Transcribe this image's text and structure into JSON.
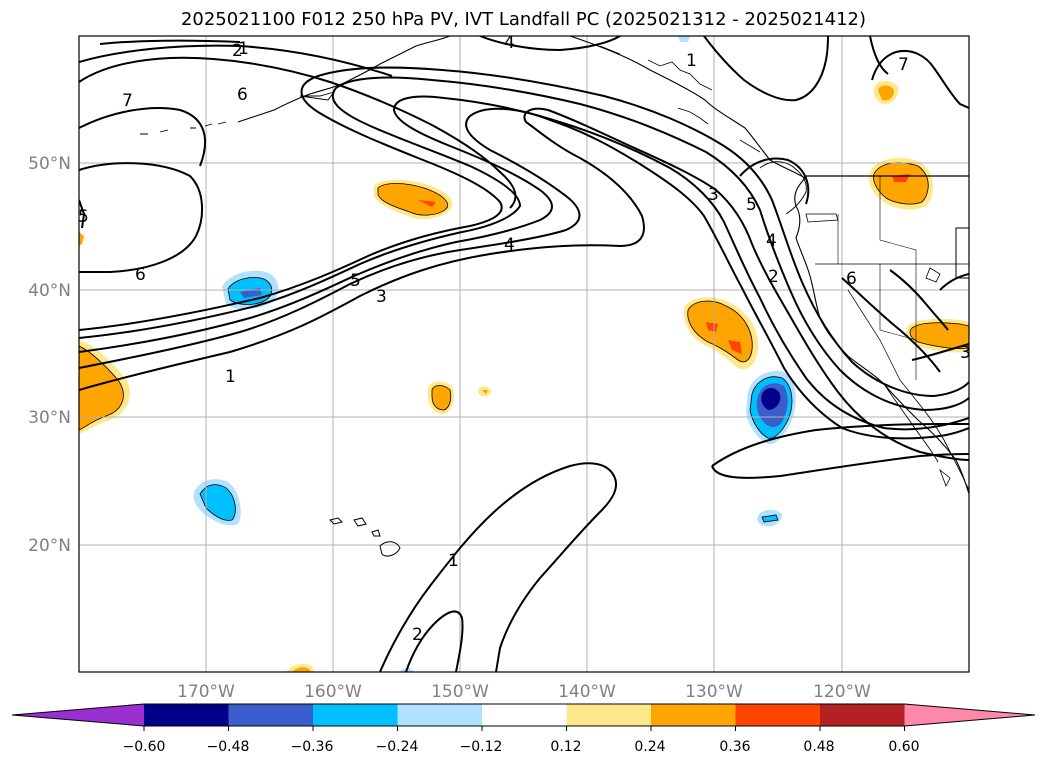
{
  "title": "2025021100 F012 250 hPa PV, IVT Landfall PC (2025021312 - 2025021412)",
  "lat_labels": [
    "50°N",
    "40°N",
    "30°N",
    "20°N"
  ],
  "lon_labels": [
    "170°W",
    "160°W",
    "150°W",
    "140°W",
    "130°W",
    "120°W"
  ],
  "colorbar": {
    "ticks": [
      "−0.60",
      "−0.48",
      "−0.36",
      "−0.24",
      "−0.12",
      "0.12",
      "0.24",
      "0.36",
      "0.48",
      "0.60"
    ],
    "colors": [
      "#9b30d0",
      "#00008b",
      "#3a5fcd",
      "#00bfff",
      "#b0e2ff",
      "#ffffff",
      "#ffe88c",
      "#ffa500",
      "#ff4500",
      "#b22222",
      "#ff88aa"
    ]
  },
  "contour_labels": [
    "1",
    "2",
    "4",
    "7",
    "6",
    "5",
    "6",
    "5",
    "3",
    "4",
    "1",
    "1",
    "3",
    "5",
    "4",
    "2",
    "6",
    "7",
    "2",
    "1",
    "3"
  ],
  "colors": {
    "negative_strong": "#00008b",
    "negative_mid": "#3a5fcd",
    "negative_light": "#00bfff",
    "negative_faint": "#b0e2ff",
    "positive_faint": "#ffe88c",
    "positive_light": "#ffa500",
    "positive_mid": "#ff4500"
  }
}
